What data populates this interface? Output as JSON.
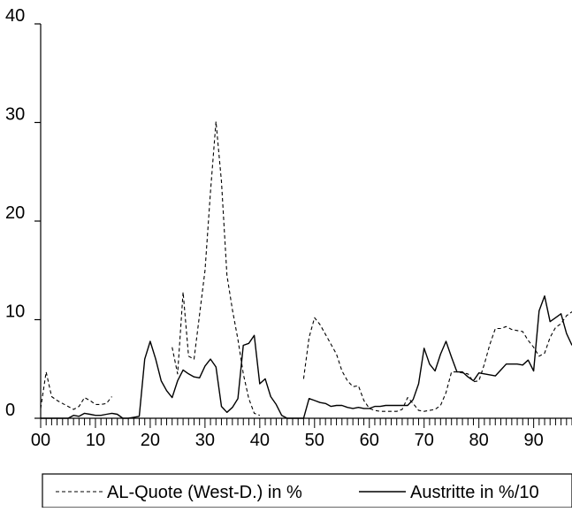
{
  "chart_data": {
    "type": "line",
    "title": "",
    "xlabel": "",
    "ylabel": "",
    "xlim": [
      0,
      97
    ],
    "ylim": [
      0,
      40
    ],
    "grid": false,
    "legend_position": "bottom",
    "x_ticks": [
      0,
      10,
      20,
      30,
      40,
      50,
      60,
      70,
      80,
      90
    ],
    "x_tick_labels": [
      "00",
      "10",
      "20",
      "30",
      "40",
      "50",
      "60",
      "70",
      "80",
      "90"
    ],
    "y_ticks": [
      0,
      10,
      20,
      30,
      40
    ],
    "y_tick_labels": [
      "0",
      "10",
      "20",
      "30",
      "40"
    ],
    "series": [
      {
        "name": "AL-Quote (West-D.) in %",
        "style": "dashed",
        "color": "#000000",
        "points": [
          [
            0,
            1.0
          ],
          [
            1,
            4.7
          ],
          [
            2,
            2.2
          ],
          [
            3,
            1.8
          ],
          [
            4,
            1.5
          ],
          [
            5,
            1.2
          ],
          [
            6,
            0.9
          ],
          [
            7,
            1.2
          ],
          [
            8,
            2.1
          ],
          [
            9,
            1.8
          ],
          [
            10,
            1.4
          ],
          [
            11,
            1.4
          ],
          [
            12,
            1.5
          ],
          [
            13,
            2.2
          ],
          null,
          [
            24,
            7.2
          ],
          [
            25,
            4.5
          ],
          [
            26,
            12.8
          ],
          [
            27,
            6.3
          ],
          [
            28,
            6.0
          ],
          [
            29,
            10.5
          ],
          [
            30,
            15.0
          ],
          [
            31,
            23.0
          ],
          [
            32,
            30.1
          ],
          [
            33,
            24.0
          ],
          [
            34,
            14.5
          ],
          [
            35,
            11.0
          ],
          [
            36,
            8.0
          ],
          [
            37,
            4.5
          ],
          [
            38,
            2.0
          ],
          [
            39,
            0.5
          ],
          [
            40,
            0.3
          ],
          null,
          [
            48,
            4.0
          ],
          [
            49,
            8.2
          ],
          [
            50,
            10.2
          ],
          [
            51,
            9.5
          ],
          [
            52,
            8.5
          ],
          [
            53,
            7.5
          ],
          [
            54,
            6.5
          ],
          [
            55,
            4.8
          ],
          [
            56,
            3.8
          ],
          [
            57,
            3.2
          ],
          [
            58,
            3.3
          ],
          [
            59,
            1.8
          ],
          [
            60,
            1.0
          ],
          [
            61,
            0.8
          ],
          [
            62,
            0.7
          ],
          [
            63,
            0.7
          ],
          [
            64,
            0.7
          ],
          [
            65,
            0.7
          ],
          [
            66,
            0.9
          ],
          [
            67,
            2.1
          ],
          [
            68,
            1.5
          ],
          [
            69,
            0.8
          ],
          [
            70,
            0.7
          ],
          [
            71,
            0.8
          ],
          [
            72,
            0.9
          ],
          [
            73,
            1.3
          ],
          [
            74,
            2.6
          ],
          [
            75,
            4.7
          ],
          [
            76,
            4.7
          ],
          [
            77,
            4.6
          ],
          [
            78,
            4.5
          ],
          [
            79,
            3.7
          ],
          [
            80,
            3.8
          ],
          [
            81,
            5.5
          ],
          [
            82,
            7.5
          ],
          [
            83,
            9.1
          ],
          [
            84,
            9.1
          ],
          [
            85,
            9.3
          ],
          [
            86,
            9.0
          ],
          [
            87,
            8.9
          ],
          [
            88,
            8.8
          ],
          [
            89,
            7.9
          ],
          [
            90,
            7.2
          ],
          [
            91,
            6.3
          ],
          [
            92,
            6.6
          ],
          [
            93,
            8.2
          ],
          [
            94,
            9.2
          ],
          [
            95,
            9.6
          ],
          [
            96,
            10.4
          ],
          [
            97,
            10.8
          ]
        ]
      },
      {
        "name": "Austritte in %/10",
        "style": "solid",
        "color": "#000000",
        "points": [
          [
            0,
            0.0
          ],
          [
            1,
            0.0
          ],
          [
            2,
            0.0
          ],
          [
            3,
            0.0
          ],
          [
            4,
            0.0
          ],
          [
            5,
            0.0
          ],
          [
            6,
            0.3
          ],
          [
            7,
            0.2
          ],
          [
            8,
            0.5
          ],
          [
            9,
            0.4
          ],
          [
            10,
            0.3
          ],
          [
            11,
            0.3
          ],
          [
            12,
            0.4
          ],
          [
            13,
            0.5
          ],
          [
            14,
            0.4
          ],
          [
            15,
            0.0
          ],
          [
            16,
            0.0
          ],
          [
            17,
            0.1
          ],
          [
            18,
            0.2
          ],
          [
            19,
            6.0
          ],
          [
            20,
            7.8
          ],
          [
            21,
            6.0
          ],
          [
            22,
            3.8
          ],
          [
            23,
            2.8
          ],
          [
            24,
            2.1
          ],
          [
            25,
            3.8
          ],
          [
            26,
            4.9
          ],
          [
            27,
            4.5
          ],
          [
            28,
            4.2
          ],
          [
            29,
            4.1
          ],
          [
            30,
            5.3
          ],
          [
            31,
            6.0
          ],
          [
            32,
            5.2
          ],
          [
            33,
            1.2
          ],
          [
            34,
            0.6
          ],
          [
            35,
            1.1
          ],
          [
            36,
            2.0
          ],
          [
            37,
            7.4
          ],
          [
            38,
            7.6
          ],
          [
            39,
            8.4
          ],
          [
            40,
            3.5
          ],
          [
            41,
            4.0
          ],
          [
            42,
            2.2
          ],
          [
            43,
            1.4
          ],
          [
            44,
            0.3
          ],
          [
            45,
            0.0
          ],
          [
            46,
            0.0
          ],
          [
            47,
            0.0
          ],
          [
            48,
            0.0
          ],
          [
            49,
            2.0
          ],
          [
            50,
            1.8
          ],
          [
            51,
            1.6
          ],
          [
            52,
            1.5
          ],
          [
            53,
            1.2
          ],
          [
            54,
            1.3
          ],
          [
            55,
            1.3
          ],
          [
            56,
            1.1
          ],
          [
            57,
            1.0
          ],
          [
            58,
            1.1
          ],
          [
            59,
            1.0
          ],
          [
            60,
            1.0
          ],
          [
            61,
            1.2
          ],
          [
            62,
            1.2
          ],
          [
            63,
            1.3
          ],
          [
            64,
            1.3
          ],
          [
            65,
            1.3
          ],
          [
            66,
            1.3
          ],
          [
            67,
            1.3
          ],
          [
            68,
            1.9
          ],
          [
            69,
            3.5
          ],
          [
            70,
            7.1
          ],
          [
            71,
            5.5
          ],
          [
            72,
            4.8
          ],
          [
            73,
            6.5
          ],
          [
            74,
            7.8
          ],
          [
            75,
            6.2
          ],
          [
            76,
            4.7
          ],
          [
            77,
            4.7
          ],
          [
            78,
            4.2
          ],
          [
            79,
            3.8
          ],
          [
            80,
            4.6
          ],
          [
            81,
            4.5
          ],
          [
            82,
            4.4
          ],
          [
            83,
            4.3
          ],
          [
            84,
            4.9
          ],
          [
            85,
            5.5
          ],
          [
            86,
            5.5
          ],
          [
            87,
            5.5
          ],
          [
            88,
            5.4
          ],
          [
            89,
            5.9
          ],
          [
            90,
            4.8
          ],
          [
            91,
            10.9
          ],
          [
            92,
            12.4
          ],
          [
            93,
            9.8
          ],
          [
            94,
            10.2
          ],
          [
            95,
            10.6
          ],
          [
            96,
            8.6
          ],
          [
            97,
            7.4
          ]
        ]
      }
    ]
  }
}
